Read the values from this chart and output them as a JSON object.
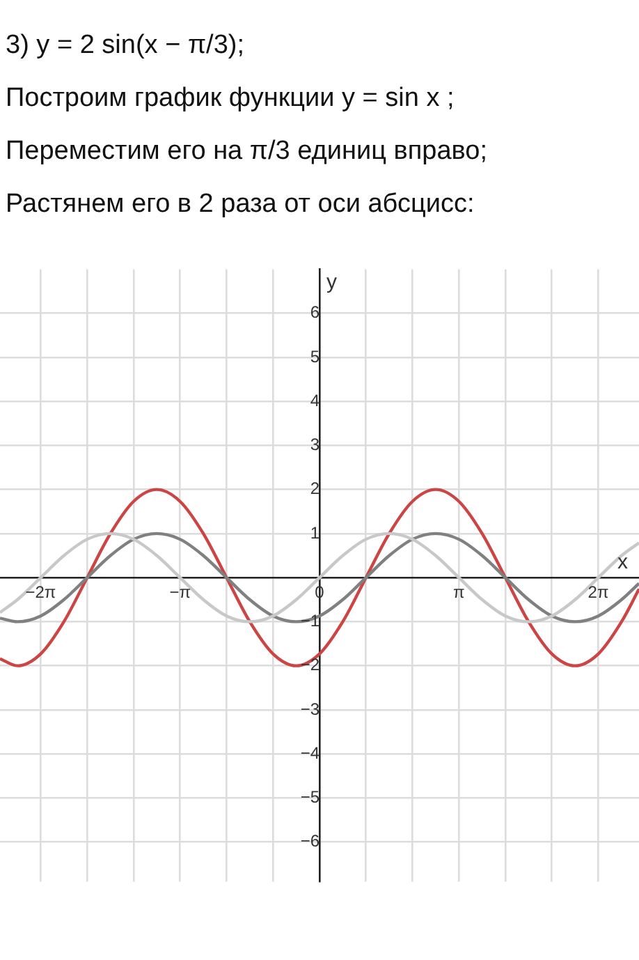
{
  "chart_data": {
    "type": "line",
    "title": "3) y = 2 sin(x − π/3);",
    "annotations": [
      "Построим график функции y = sin x ;",
      "Переместим его на π/3 единиц вправо;",
      "Растянем его в 2 раза от оси абсцисс:"
    ],
    "xlabel": "x",
    "ylabel": "y",
    "x": [
      -7.2,
      -6.807,
      -6.283,
      -5.76,
      -5.236,
      -4.712,
      -4.189,
      -3.665,
      -3.142,
      -2.618,
      -2.094,
      -1.571,
      -1.047,
      -0.524,
      0,
      0.524,
      1.047,
      1.571,
      2.094,
      2.618,
      3.142,
      3.665,
      4.189,
      4.712,
      5.236,
      5.76,
      6.283,
      6.807,
      7.2
    ],
    "series": [
      {
        "color": "#c8c8c8",
        "values": [
          -0.79,
          -0.5,
          0,
          0.5,
          0.87,
          1,
          0.87,
          0.5,
          0,
          -0.5,
          -0.87,
          -1,
          -0.87,
          -0.5,
          0,
          0.5,
          0.87,
          1,
          0.87,
          0.5,
          0,
          -0.5,
          -0.87,
          -1,
          -0.87,
          -0.5,
          0,
          0.5,
          0.79
        ]
      },
      {
        "color": "#808080",
        "values": [
          -0.92,
          -1,
          -0.87,
          -0.5,
          0,
          0.5,
          0.87,
          1,
          0.87,
          0.5,
          0,
          -0.5,
          -0.87,
          -1,
          -0.87,
          -0.5,
          0,
          0.5,
          0.87,
          1,
          0.87,
          0.5,
          0,
          -0.5,
          -0.87,
          -1,
          -0.87,
          -0.5,
          -0.13
        ]
      },
      {
        "color": "#cc4444",
        "values": [
          -1.84,
          -2,
          -1.73,
          -1,
          0,
          1,
          1.73,
          2,
          1.73,
          1,
          0,
          -1,
          -1.73,
          -2,
          -1.73,
          -1,
          0,
          1,
          1.73,
          2,
          1.73,
          1,
          0,
          -1,
          -1.73,
          -2,
          -1.73,
          -1,
          -0.26
        ]
      }
    ],
    "xlim": [
      -7.2,
      7.2
    ],
    "ylim": [
      -6.9,
      7
    ],
    "xticks": [
      {
        "value": -6.283,
        "label": "−2π"
      },
      {
        "value": -5.236,
        "label": null
      },
      {
        "value": -4.189,
        "label": null
      },
      {
        "value": -3.142,
        "label": "−π"
      },
      {
        "value": -2.094,
        "label": null
      },
      {
        "value": -1.047,
        "label": null
      },
      0,
      {
        "value": 1.047,
        "label": null
      },
      {
        "value": 2.094,
        "label": null
      },
      {
        "value": 3.142,
        "label": "π"
      },
      {
        "value": 4.189,
        "label": null
      },
      {
        "value": 5.236,
        "label": null
      },
      {
        "value": 6.283,
        "label": "2π"
      }
    ],
    "yticks": [
      {
        "value": -6,
        "label": "−6"
      },
      {
        "value": -5,
        "label": "−5"
      },
      {
        "value": -4,
        "label": "−4"
      },
      {
        "value": -3,
        "label": "−3"
      },
      {
        "value": -2,
        "label": "−2"
      },
      {
        "value": -1,
        "label": "−1"
      },
      {
        "value": 0,
        "label": null
      },
      1,
      2,
      3,
      4,
      5,
      6
    ],
    "grid": true,
    "marker": "none",
    "line_style": "solid",
    "legend": false
  }
}
